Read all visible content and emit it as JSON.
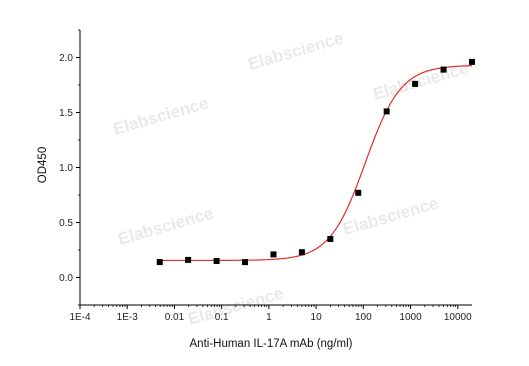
{
  "chart_data": {
    "type": "scatter",
    "xlabel": "Anti-Human IL-17A mAb (ng/ml)",
    "ylabel": "OD450",
    "x_scale": "log",
    "xlim": [
      0.0001,
      20000
    ],
    "ylim": [
      -0.25,
      2.25
    ],
    "x_ticks": [
      "1E-4",
      "1E-3",
      "0.01",
      "0.1",
      "1",
      "10",
      "100",
      "1000",
      "10000"
    ],
    "y_ticks": [
      "0.0",
      "0.5",
      "1.0",
      "1.5",
      "2.0"
    ],
    "grid": false,
    "series": [
      {
        "marker": "square",
        "color": "#000000",
        "x": [
          0.00488,
          0.0195,
          0.0781,
          0.3125,
          1.25,
          5,
          20,
          78,
          312,
          1250,
          5000,
          20000
        ],
        "y": [
          0.14,
          0.16,
          0.15,
          0.14,
          0.21,
          0.23,
          0.35,
          0.77,
          1.51,
          1.76,
          1.89,
          1.96
        ]
      }
    ],
    "fit_curve": {
      "type": "4PL",
      "color": "#e0302a",
      "bottom": 0.155,
      "top": 1.93,
      "ec50": 110,
      "hill": 1.15
    },
    "watermark": "Elabscience"
  }
}
